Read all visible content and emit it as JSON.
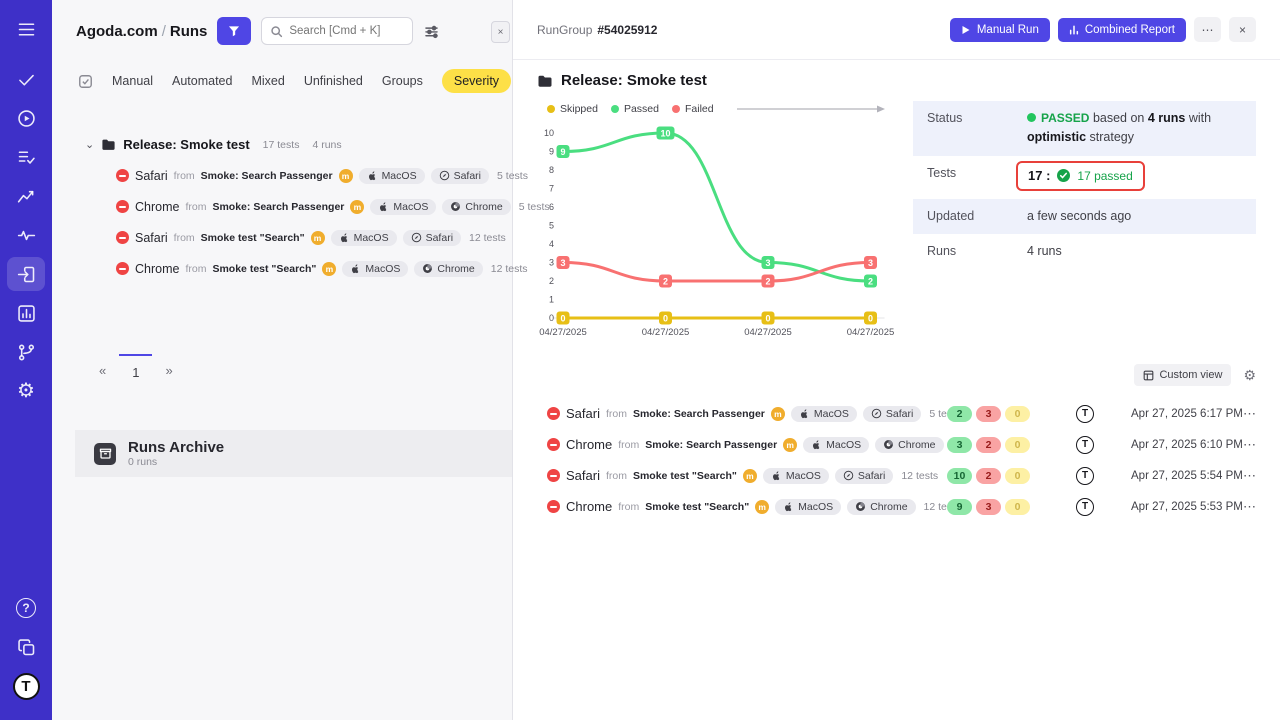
{
  "colors": {
    "sidebar_bg": "#3e30c8",
    "accent_indigo": "#4f46e5",
    "severity_yellow": "#fde047",
    "passed_green": "#4ade80",
    "failed_red": "#f87171",
    "skipped_yellow": "#e7bf16",
    "status_green": "#16a34a",
    "highlight_red": "#e8403a",
    "failed_icon_red": "#ef4444",
    "manual_badge_amber": "#f0ad2d"
  },
  "sidebar": {
    "help_glyph": "?",
    "settings_glyph": "⚙",
    "logo_letter": "T"
  },
  "left_panel": {
    "breadcrumb": {
      "project": "Agoda.com",
      "separator": "/",
      "page": "Runs"
    },
    "search_placeholder": "Search [Cmd + K]",
    "collapse_glyph": "×",
    "tabs": [
      {
        "label": "Manual"
      },
      {
        "label": "Automated"
      },
      {
        "label": "Mixed"
      },
      {
        "label": "Unfinished"
      },
      {
        "label": "Groups"
      },
      {
        "label": "Severity",
        "highlight": true
      }
    ],
    "group": {
      "chevron": "⌄",
      "title": "Release: Smoke test",
      "tests_count": "17 tests",
      "runs_count": "4 runs"
    },
    "runs": [
      {
        "browser": "Safari",
        "from_label": "from",
        "suite": "Smoke: Search Passenger",
        "badge": "m",
        "os_chip": "MacOS",
        "browser_chip": "Safari",
        "tests": "5 tests"
      },
      {
        "browser": "Chrome",
        "from_label": "from",
        "suite": "Smoke: Search Passenger",
        "badge": "m",
        "os_chip": "MacOS",
        "browser_chip": "Chrome",
        "tests": "5 tests"
      },
      {
        "browser": "Safari",
        "from_label": "from",
        "suite": "Smoke test \"Search\"",
        "badge": "m",
        "os_chip": "MacOS",
        "browser_chip": "Safari",
        "tests": "12 tests"
      },
      {
        "browser": "Chrome",
        "from_label": "from",
        "suite": "Smoke test \"Search\"",
        "badge": "m",
        "os_chip": "MacOS",
        "browser_chip": "Chrome",
        "tests": "12 tests"
      }
    ],
    "pagination": {
      "prev": "«",
      "current": "1",
      "next": "»"
    },
    "archive": {
      "title": "Runs Archive",
      "count": "0 runs"
    }
  },
  "main": {
    "header": {
      "rungroup_label": "RunGroup",
      "rungroup_id": "#54025912",
      "manual_run_label": "Manual Run",
      "combined_report_label": "Combined Report",
      "more_glyph": "⋯",
      "close_glyph": "×"
    },
    "title": "Release: Smoke test",
    "details": {
      "status_label": "Status",
      "status_value": "PASSED",
      "status_text_1": "based on",
      "status_runs": "4 runs",
      "status_text_2": "with",
      "status_strategy": "optimistic",
      "status_text_3": "strategy",
      "tests_label": "Tests",
      "tests_total": "17 :",
      "tests_passed": "17 passed",
      "updated_label": "Updated",
      "updated_value": "a few seconds ago",
      "runs_label": "Runs",
      "runs_value": "4 runs"
    },
    "custom_view_label": "Custom view",
    "custom_view_gear": "⚙",
    "avatar_letter": "T",
    "row_more_glyph": "⋯",
    "table_rows": [
      {
        "browser": "Safari",
        "from_label": "from",
        "suite": "Smoke: Search Passenger",
        "badge": "m",
        "os_chip": "MacOS",
        "browser_chip": "Safari",
        "tests": "5 tests",
        "passed": "2",
        "failed": "3",
        "skipped": "0",
        "time": "Apr 27, 2025 6:17 PM"
      },
      {
        "browser": "Chrome",
        "from_label": "from",
        "suite": "Smoke: Search Passenger",
        "badge": "m",
        "os_chip": "MacOS",
        "browser_chip": "Chrome",
        "tests": "5 tests",
        "passed": "3",
        "failed": "2",
        "skipped": "0",
        "time": "Apr 27, 2025 6:10 PM"
      },
      {
        "browser": "Safari",
        "from_label": "from",
        "suite": "Smoke test \"Search\"",
        "badge": "m",
        "os_chip": "MacOS",
        "browser_chip": "Safari",
        "tests": "12 tests",
        "passed": "10",
        "failed": "2",
        "skipped": "0",
        "time": "Apr 27, 2025 5:54 PM"
      },
      {
        "browser": "Chrome",
        "from_label": "from",
        "suite": "Smoke test \"Search\"",
        "badge": "m",
        "os_chip": "MacOS",
        "browser_chip": "Chrome",
        "tests": "12 tests",
        "passed": "9",
        "failed": "3",
        "skipped": "0",
        "time": "Apr 27, 2025 5:53 PM"
      }
    ]
  },
  "chart_data": {
    "type": "line",
    "x": [
      "04/27/2025",
      "04/27/2025",
      "04/27/2025",
      "04/27/2025"
    ],
    "series": [
      {
        "name": "Skipped",
        "color": "#e7bf16",
        "values": [
          0,
          0,
          0,
          0
        ]
      },
      {
        "name": "Passed",
        "color": "#4ade80",
        "values": [
          9,
          10,
          3,
          2
        ]
      },
      {
        "name": "Failed",
        "color": "#f87171",
        "values": [
          3,
          2,
          2,
          3
        ]
      }
    ],
    "ylim": [
      0,
      10
    ],
    "yticks": [
      0,
      1,
      2,
      3,
      4,
      5,
      6,
      7,
      8,
      9,
      10
    ],
    "legend_position": "top",
    "point_labels": true,
    "grid": false
  }
}
